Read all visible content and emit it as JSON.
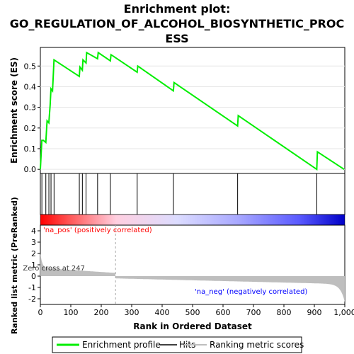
{
  "chart_data": {
    "type": "line",
    "title_lines": [
      "Enrichment plot:",
      "GO_REGULATION_OF_ALCOHOL_BIOSYNTHETIC_PROC",
      "ESS"
    ],
    "es_panel": {
      "ylabel": "Enrichment score (ES)",
      "ylim": [
        -0.02,
        0.59
      ],
      "yticks": [
        0.0,
        0.1,
        0.2,
        0.3,
        0.4,
        0.5
      ],
      "ytick_labels": [
        "0.0",
        "0.1",
        "0.2",
        "0.3",
        "0.4",
        "0.5"
      ],
      "line_color": "#00ee00",
      "series": [
        {
          "name": "Enrichment profile",
          "x": [
            0,
            5,
            10,
            18,
            22,
            28,
            32,
            35,
            40,
            45,
            128,
            130,
            138,
            140,
            150,
            152,
            188,
            190,
            230,
            232,
            318,
            320,
            437,
            439,
            648,
            650,
            908,
            910,
            998
          ],
          "y": [
            0.0,
            0.14,
            0.14,
            0.13,
            0.235,
            0.225,
            0.31,
            0.39,
            0.38,
            0.53,
            0.45,
            0.495,
            0.48,
            0.53,
            0.515,
            0.565,
            0.535,
            0.565,
            0.525,
            0.555,
            0.47,
            0.5,
            0.38,
            0.42,
            0.21,
            0.26,
            0.0,
            0.085,
            0.0
          ]
        }
      ]
    },
    "hits": [
      5,
      18,
      28,
      35,
      45,
      128,
      138,
      150,
      188,
      230,
      318,
      437,
      648,
      908
    ],
    "xaxis": {
      "label": "Rank in Ordered Dataset",
      "xlim": [
        0,
        1000
      ],
      "ticks": [
        0,
        100,
        200,
        300,
        400,
        500,
        600,
        700,
        800,
        900,
        1000
      ],
      "tick_labels": [
        "0",
        "100",
        "200",
        "300",
        "400",
        "500",
        "600",
        "700",
        "800",
        "900",
        "1,000"
      ]
    },
    "metric_panel": {
      "ylabel": "Ranked list metric (PreRanked)",
      "ylim": [
        -2.5,
        4.5
      ],
      "yticks": [
        -2,
        -1,
        0,
        1,
        2,
        3,
        4
      ],
      "ytick_labels": [
        "-2",
        "-1",
        "0",
        "1",
        "2",
        "3",
        "4"
      ],
      "zero_cross_rank": 247,
      "zero_cross_label": "Zero cross at 247",
      "pos_label": "'na_pos' (positively correlated)",
      "neg_label": "'na_neg' (negatively correlated)",
      "pos_color": "#ff0000",
      "neg_color": "#0000ff"
    },
    "legend": {
      "placement": "bottom",
      "items": [
        {
          "label": "Enrichment profile",
          "color": "#00ee00"
        },
        {
          "label": "Hits",
          "color": "#000000"
        },
        {
          "label": "Ranking metric scores",
          "color": "#bebebe"
        }
      ]
    }
  }
}
